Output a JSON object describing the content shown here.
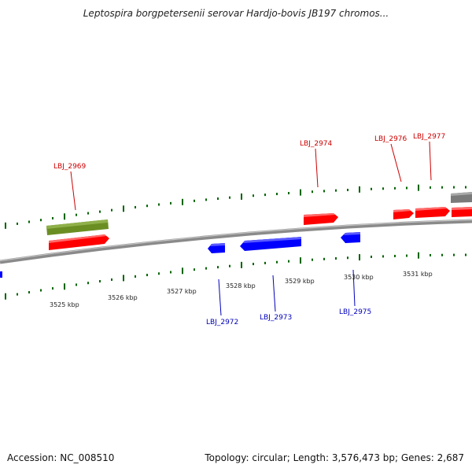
{
  "title": "Leptospira borgpetersenii serovar Hardjo-bovis JB197 chromos...",
  "footer": {
    "accession": "Accession: NC_008510",
    "summary": "Topology: circular; Length: 3,576,473 bp; Genes: 2,687"
  },
  "colors": {
    "forward_gene": "#ff0000",
    "reverse_gene": "#0000ff",
    "highlight_gene": "#6b8e23",
    "other_feature": "#7a7a7a",
    "forward_label": "#cc0000",
    "reverse_label": "#0000bb",
    "ticks": "#006400",
    "backbone": "#8a8a8a"
  },
  "scale": {
    "ticks": [
      {
        "label": "3525 kbp"
      },
      {
        "label": "3526 kbp"
      },
      {
        "label": "3527 kbp"
      },
      {
        "label": "3528 kbp"
      },
      {
        "label": "3529 kbp"
      },
      {
        "label": "3530 kbp"
      },
      {
        "label": "3531 kbp"
      }
    ]
  },
  "genes": {
    "forward": [
      {
        "label": "LBJ_2969"
      },
      {
        "label": "LBJ_2974"
      },
      {
        "label": "LBJ_2976"
      },
      {
        "label": "LBJ_2977"
      }
    ],
    "reverse": [
      {
        "label": "LBJ_2972"
      },
      {
        "label": "LBJ_2973"
      },
      {
        "label": "LBJ_2975"
      }
    ]
  }
}
